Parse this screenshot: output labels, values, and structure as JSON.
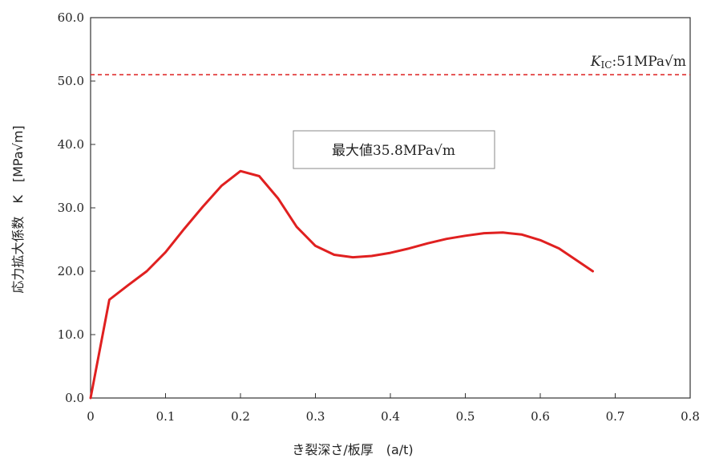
{
  "chart_data": {
    "type": "line",
    "xlabel": "き裂深さ/板厚　(a/t)",
    "ylabel": "応力拡大係数　K　[MPa√m]",
    "xlim": [
      0,
      0.8
    ],
    "ylim": [
      0,
      60
    ],
    "x_ticks": [
      "0",
      "0.1",
      "0.2",
      "0.3",
      "0.4",
      "0.5",
      "0.6",
      "0.7",
      "0.8"
    ],
    "x_tick_values": [
      0,
      0.1,
      0.2,
      0.3,
      0.4,
      0.5,
      0.6,
      0.7,
      0.8
    ],
    "y_ticks": [
      "0.0",
      "10.0",
      "20.0",
      "30.0",
      "40.0",
      "50.0",
      "60.0"
    ],
    "y_tick_values": [
      0,
      10,
      20,
      30,
      40,
      50,
      60
    ],
    "grid": false,
    "series": [
      {
        "color": "#e02020",
        "x": [
          0,
          0.025,
          0.05,
          0.075,
          0.1,
          0.125,
          0.15,
          0.175,
          0.2,
          0.225,
          0.25,
          0.275,
          0.3,
          0.325,
          0.35,
          0.375,
          0.4,
          0.425,
          0.45,
          0.475,
          0.5,
          0.525,
          0.55,
          0.575,
          0.6,
          0.625,
          0.65,
          0.67
        ],
        "y": [
          0,
          15.5,
          17.8,
          20.0,
          23.0,
          26.7,
          30.2,
          33.5,
          35.8,
          35.0,
          31.5,
          27.0,
          24.0,
          22.6,
          22.2,
          22.4,
          22.9,
          23.6,
          24.4,
          25.1,
          25.6,
          26.0,
          26.1,
          25.8,
          24.9,
          23.6,
          21.6,
          20.0
        ]
      }
    ],
    "reference_line": {
      "y": 51,
      "color": "#e03030",
      "style": "dashed",
      "label_symbol": "K",
      "label_subscript": "IC",
      "label_rest": ":51MPa√m"
    },
    "annotation": {
      "text": "最大値35.8MPa√m"
    }
  }
}
